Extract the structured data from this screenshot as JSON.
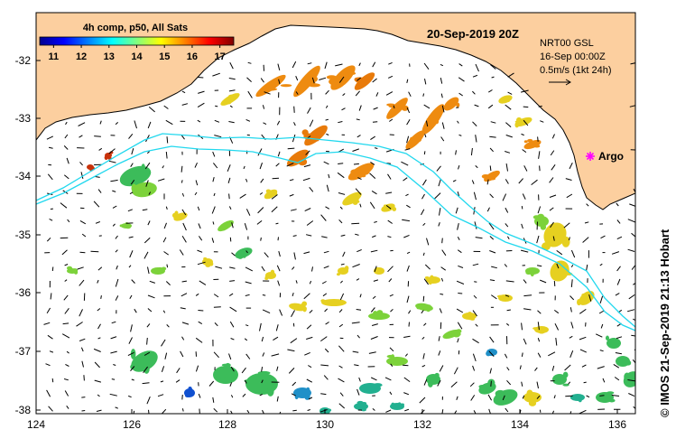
{
  "map": {
    "colorbar_title": "4h comp, p50, All Sats",
    "colorbar_ticks": [
      "11",
      "12",
      "13",
      "14",
      "15",
      "16",
      "17"
    ],
    "colorbar_range": [
      10.5,
      17.5
    ],
    "date_title": "20-Sep-2019 20Z",
    "info_lines": [
      "NRT00 GSL",
      "16-Sep 00:00Z",
      "0.5m/s (1kt 24h)"
    ],
    "argo_label": "Argo",
    "credit": "© IMOS 21-Sep-2019 21:13 Hobart",
    "x_ticks": [
      "124",
      "126",
      "128",
      "130",
      "132",
      "134",
      "136"
    ],
    "y_ticks": [
      "-32",
      "-33",
      "-34",
      "-35",
      "-36",
      "-37",
      "-38"
    ],
    "land_color": "#fccf9f",
    "track_color": "#22d8ee",
    "argo_color": "#ff00ff"
  }
}
